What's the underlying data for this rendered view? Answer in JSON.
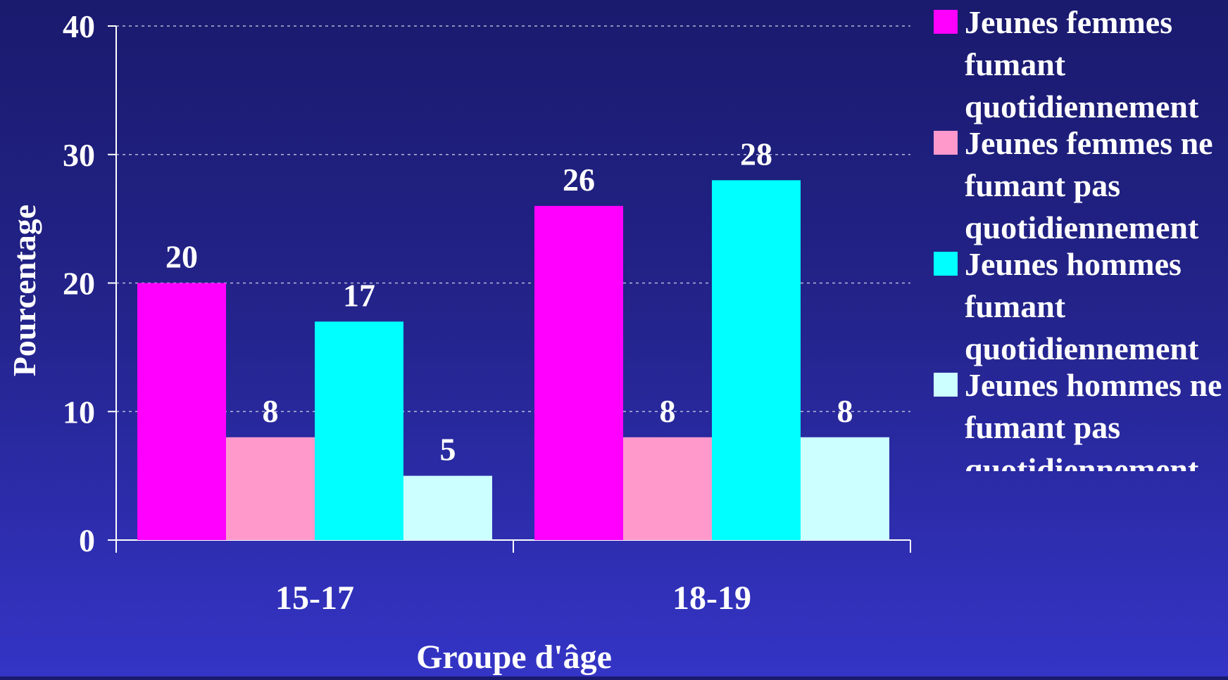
{
  "chart_data": {
    "type": "bar",
    "title": "",
    "xlabel": "Groupe d'âge",
    "ylabel": "Pourcentage",
    "categories": [
      "15-17",
      "18-19"
    ],
    "ylim": [
      0,
      40
    ],
    "yticks": [
      "0",
      "10",
      "20",
      "30",
      "40"
    ],
    "grid": true,
    "legend_position": "right",
    "series": [
      {
        "name": "Jeunes femmes fumant quotidiennement",
        "color": "#ff00ff",
        "values": [
          20,
          26
        ]
      },
      {
        "name": "Jeunes femmes ne fumant pas quotidiennement",
        "color": "#ff99cc",
        "values": [
          8,
          8
        ]
      },
      {
        "name": "Jeunes hommes fumant quotidiennement",
        "color": "#00ffff",
        "values": [
          17,
          28
        ]
      },
      {
        "name": "Jeunes hommes ne fumant pas quotidiennement",
        "color": "#ccffff",
        "values": [
          5,
          8
        ]
      }
    ]
  }
}
